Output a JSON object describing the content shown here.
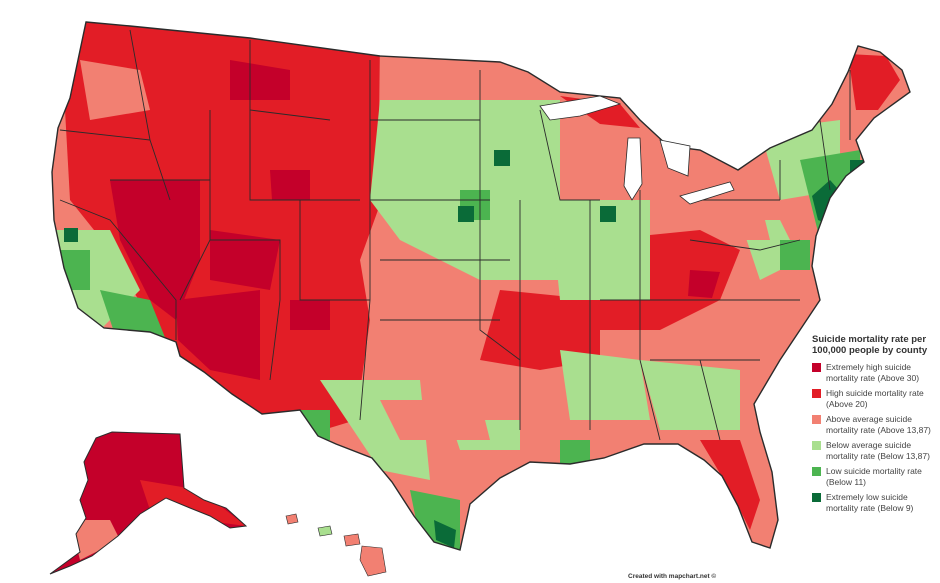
{
  "legend": {
    "title": "Suicide mortality rate per 100,000 people by county",
    "items": [
      {
        "label": "Extremely high suicide mortality rate (Above 30)",
        "color": "#c4002a"
      },
      {
        "label": "High suicide mortality rate (Above 20)",
        "color": "#e21d26"
      },
      {
        "label": "Above average suicide mortality rate (Above 13,87)",
        "color": "#f28072"
      },
      {
        "label": "Below average suicide mortality rate (Below 13,87)",
        "color": "#a9df8f"
      },
      {
        "label": "Low suicide mortality rate (Below 11)",
        "color": "#4cb450"
      },
      {
        "label": "Extremely low suicide mortality rate (Below 9)",
        "color": "#0a6b38"
      }
    ]
  },
  "credit": "Created with mapchart.net ©",
  "colors": {
    "background": "#ffffff",
    "border": "#2b2b2b"
  }
}
